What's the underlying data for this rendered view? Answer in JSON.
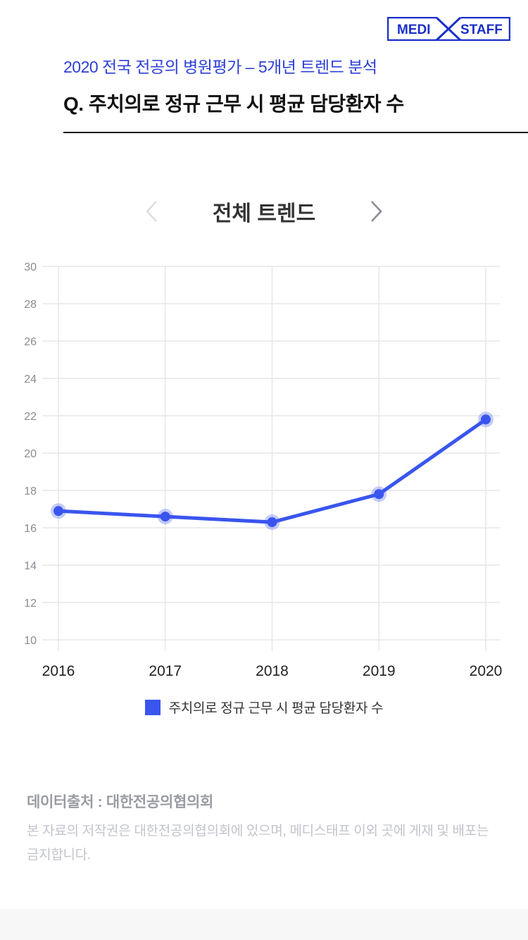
{
  "logo": {
    "left_text": "MEDI",
    "right_text": "STAFF"
  },
  "header": {
    "subtitle": "2020 전국 전공의 병원평가 – 5개년 트렌드 분석",
    "question": "Q. 주치의로 정규 근무 시 평균 담당환자 수"
  },
  "nav": {
    "title": "전체 트렌드"
  },
  "chart_data": {
    "type": "line",
    "categories": [
      "2016",
      "2017",
      "2018",
      "2019",
      "2020"
    ],
    "series": [
      {
        "name": "주치의로 정규 근무 시 평균 담당환자 수",
        "values": [
          16.9,
          16.6,
          16.3,
          17.8,
          21.8
        ],
        "color": "#3a55ee"
      }
    ],
    "ylim": [
      10,
      30
    ],
    "yticks": [
      10,
      12,
      14,
      16,
      18,
      20,
      22,
      24,
      26,
      28,
      30
    ],
    "grid": true,
    "legend": "bottom-center"
  },
  "footer": {
    "source": "데이터출처 : 대한전공의협의회",
    "notice": "본 자료의 저작권은 대한전공의협의회에 있으며, 메디스태프 이외 곳에 게재 및 배포는 금지합니다."
  }
}
